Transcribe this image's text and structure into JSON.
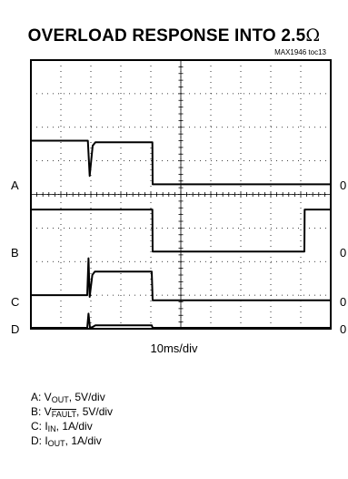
{
  "title": {
    "text": "OVERLOAD RESPONSE INTO 2.5",
    "unit_symbol": "Ω"
  },
  "part_number": "MAX1946 toc13",
  "x_scale": "10ms/div",
  "legend": [
    {
      "prefix": "A: V",
      "sub": "OUT",
      "overline_sub": false,
      "suffix": ", 5V/div"
    },
    {
      "prefix": "B: V",
      "sub": "FAULT",
      "overline_sub": true,
      "suffix": ", 5V/div"
    },
    {
      "prefix": "C: I",
      "sub": "IN",
      "overline_sub": false,
      "suffix": ", 1A/div"
    },
    {
      "prefix": "D: I",
      "sub": "OUT",
      "overline_sub": false,
      "suffix": ", 1A/div"
    }
  ],
  "chart_data": {
    "type": "line",
    "title": "OVERLOAD RESPONSE INTO 2.5Ω",
    "xlabel": "10ms/div",
    "x_unit": "ms",
    "xlim": [
      0,
      100
    ],
    "divisions_x": 10,
    "divisions_y": 8,
    "grid": true,
    "channels": [
      {
        "label": "A",
        "zero_label": "0",
        "scale": "5V/div",
        "zero_div": 4.3,
        "points": [
          [
            0,
            5.6
          ],
          [
            19,
            5.6
          ],
          [
            19.6,
            4.55
          ],
          [
            20.6,
            5.45
          ],
          [
            21.5,
            5.55
          ],
          [
            40.5,
            5.55
          ],
          [
            40.6,
            4.3
          ],
          [
            100,
            4.3
          ]
        ]
      },
      {
        "label": "B",
        "zero_label": "0",
        "scale": "5V/div",
        "zero_div": 2.3,
        "points": [
          [
            0,
            3.55
          ],
          [
            40.5,
            3.55
          ],
          [
            40.6,
            2.3
          ],
          [
            91.2,
            2.3
          ],
          [
            91.3,
            3.55
          ],
          [
            100,
            3.55
          ]
        ]
      },
      {
        "label": "C",
        "zero_label": "0",
        "scale": "1A/div",
        "zero_div": 0.85,
        "points": [
          [
            0,
            1.0
          ],
          [
            18.8,
            1.0
          ],
          [
            19.2,
            2.1
          ],
          [
            19.6,
            0.95
          ],
          [
            20.5,
            1.6
          ],
          [
            21.3,
            1.7
          ],
          [
            40.3,
            1.7
          ],
          [
            40.6,
            0.85
          ],
          [
            100,
            0.85
          ]
        ]
      },
      {
        "label": "D",
        "zero_label": "0",
        "scale": "1A/div",
        "zero_div": -0.6,
        "points": [
          [
            0,
            -0.55
          ],
          [
            18.8,
            -0.55
          ],
          [
            19.2,
            0.45
          ],
          [
            19.7,
            -0.55
          ],
          [
            20.5,
            0.05
          ],
          [
            21.5,
            0.1
          ],
          [
            40.3,
            0.1
          ],
          [
            40.6,
            -0.55
          ],
          [
            100,
            -0.55
          ]
        ]
      }
    ]
  }
}
